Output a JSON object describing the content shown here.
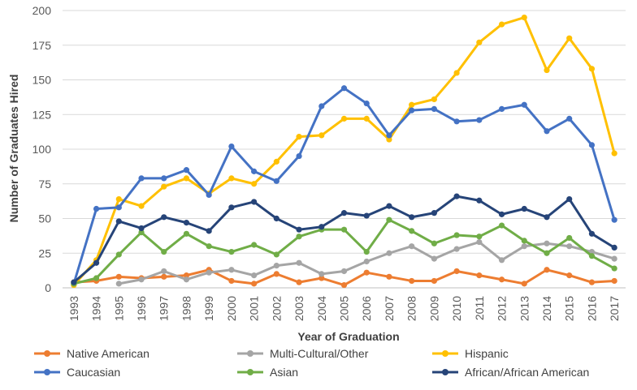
{
  "chart_data": {
    "type": "line",
    "title": "",
    "xlabel": "Year of Graduation",
    "ylabel": "Number of Graduates Hired",
    "ylim": [
      0,
      200
    ],
    "yticks": [
      0,
      25,
      50,
      75,
      100,
      125,
      150,
      175,
      200
    ],
    "grid": true,
    "legend_position": "bottom",
    "categories": [
      "1993",
      "1994",
      "1995",
      "1996",
      "1997",
      "1998",
      "1999",
      "2000",
      "2001",
      "2002",
      "2003",
      "2004",
      "2005",
      "2006",
      "2007",
      "2008",
      "2009",
      "2010",
      "2011",
      "2012",
      "2013",
      "2014",
      "2015",
      "2016",
      "2017"
    ],
    "series": [
      {
        "name": "Native American",
        "color": "#ed7d31",
        "values": [
          4,
          5,
          8,
          7,
          8,
          9,
          13,
          5,
          3,
          10,
          4,
          7,
          2,
          11,
          8,
          5,
          5,
          12,
          9,
          6,
          3,
          13,
          9,
          4,
          5
        ]
      },
      {
        "name": "Multi-Cultural/Other",
        "color": "#a5a5a5",
        "values": [
          null,
          null,
          3,
          6,
          12,
          6,
          11,
          13,
          9,
          16,
          18,
          10,
          12,
          19,
          25,
          30,
          21,
          28,
          33,
          20,
          30,
          32,
          30,
          26,
          21
        ]
      },
      {
        "name": "Hispanic",
        "color": "#ffc000",
        "values": [
          2,
          20,
          64,
          59,
          73,
          79,
          68,
          79,
          75,
          91,
          109,
          110,
          122,
          122,
          107,
          132,
          136,
          155,
          177,
          190,
          195,
          157,
          180,
          158,
          97
        ]
      },
      {
        "name": "Caucasian",
        "color": "#4472c4",
        "values": [
          3,
          57,
          58,
          79,
          79,
          85,
          67,
          102,
          84,
          77,
          95,
          131,
          144,
          133,
          110,
          128,
          129,
          120,
          121,
          129,
          132,
          113,
          122,
          103,
          49
        ]
      },
      {
        "name": "Asian",
        "color": "#70ad47",
        "values": [
          3,
          7,
          24,
          40,
          26,
          39,
          30,
          26,
          31,
          24,
          37,
          42,
          42,
          26,
          49,
          41,
          32,
          38,
          37,
          45,
          34,
          25,
          36,
          23,
          14
        ]
      },
      {
        "name": "African/African American",
        "color": "#264478",
        "values": [
          4,
          18,
          48,
          43,
          51,
          47,
          41,
          58,
          62,
          50,
          42,
          44,
          54,
          52,
          59,
          51,
          54,
          66,
          63,
          53,
          57,
          51,
          64,
          39,
          29
        ]
      }
    ]
  }
}
